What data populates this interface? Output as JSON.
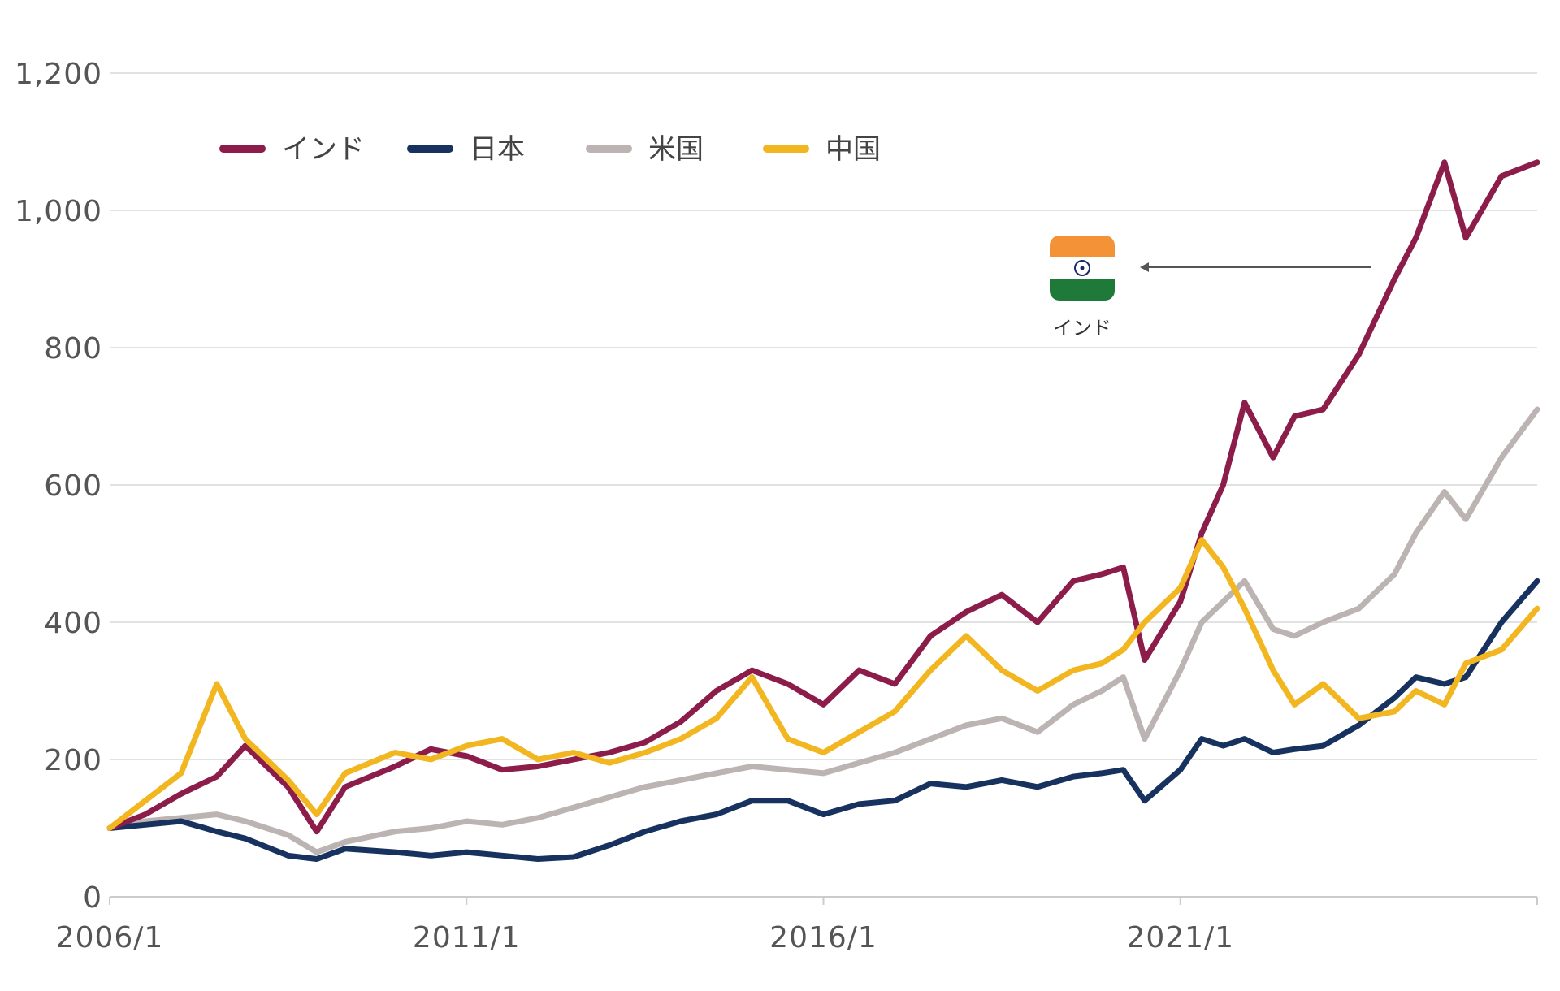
{
  "chart_data": {
    "type": "line",
    "title": "",
    "xlabel": "",
    "ylabel": "",
    "ylim": [
      0,
      1200
    ],
    "xlim": [
      "2006/1",
      "2026/1"
    ],
    "y_ticks": [
      "0",
      "200",
      "400",
      "600",
      "800",
      "1,000",
      "1,200"
    ],
    "y_tick_values": [
      0,
      200,
      400,
      600,
      800,
      1000,
      1200
    ],
    "x_ticks": [
      "2006/1",
      "2011/1",
      "2016/1",
      "2021/1"
    ],
    "x_tick_values": [
      2006.0,
      2011.0,
      2016.0,
      2021.0
    ],
    "grid": true,
    "legend": "top-left",
    "x": [
      2006.0,
      2006.5,
      2007.0,
      2007.5,
      2007.9,
      2008.5,
      2008.9,
      2009.3,
      2010.0,
      2010.5,
      2011.0,
      2011.5,
      2012.0,
      2012.5,
      2013.0,
      2013.5,
      2014.0,
      2014.5,
      2015.0,
      2015.5,
      2016.0,
      2016.5,
      2017.0,
      2017.5,
      2018.0,
      2018.5,
      2019.0,
      2019.5,
      2019.9,
      2020.2,
      2020.5,
      2021.0,
      2021.3,
      2021.6,
      2021.9,
      2022.3,
      2022.6,
      2023.0,
      2023.5,
      2024.0,
      2024.3,
      2024.7,
      2025.0,
      2025.5,
      2026.0
    ],
    "series": [
      {
        "name": "インド",
        "color": "#8c1d4b",
        "values": [
          100,
          120,
          150,
          175,
          220,
          160,
          95,
          160,
          190,
          215,
          205,
          185,
          190,
          200,
          210,
          225,
          255,
          300,
          330,
          310,
          280,
          330,
          310,
          380,
          415,
          440,
          400,
          460,
          470,
          480,
          345,
          430,
          530,
          600,
          720,
          640,
          700,
          710,
          790,
          900,
          960,
          1070,
          960,
          1050,
          1070
        ]
      },
      {
        "name": "日本",
        "color": "#17325e",
        "values": [
          100,
          105,
          110,
          95,
          85,
          60,
          55,
          70,
          65,
          60,
          65,
          60,
          55,
          58,
          75,
          95,
          110,
          120,
          140,
          140,
          120,
          135,
          140,
          165,
          160,
          170,
          160,
          175,
          180,
          185,
          140,
          185,
          230,
          220,
          230,
          210,
          215,
          220,
          250,
          290,
          320,
          310,
          320,
          400,
          460
        ]
      },
      {
        "name": "米国",
        "color": "#bcb4b2",
        "values": [
          100,
          110,
          115,
          120,
          110,
          90,
          65,
          80,
          95,
          100,
          110,
          105,
          115,
          130,
          145,
          160,
          170,
          180,
          190,
          185,
          180,
          195,
          210,
          230,
          250,
          260,
          240,
          280,
          300,
          320,
          230,
          330,
          400,
          430,
          460,
          390,
          380,
          400,
          420,
          470,
          530,
          590,
          550,
          640,
          710
        ]
      },
      {
        "name": "中国",
        "color": "#f2b620",
        "values": [
          100,
          140,
          180,
          310,
          230,
          170,
          120,
          180,
          210,
          200,
          220,
          230,
          200,
          210,
          195,
          210,
          230,
          260,
          320,
          230,
          210,
          240,
          270,
          330,
          380,
          330,
          300,
          330,
          340,
          360,
          400,
          450,
          520,
          480,
          420,
          330,
          280,
          310,
          260,
          270,
          300,
          280,
          340,
          360,
          420
        ]
      }
    ],
    "annotation": {
      "label": "インド",
      "icon": "india-flag-icon"
    }
  }
}
